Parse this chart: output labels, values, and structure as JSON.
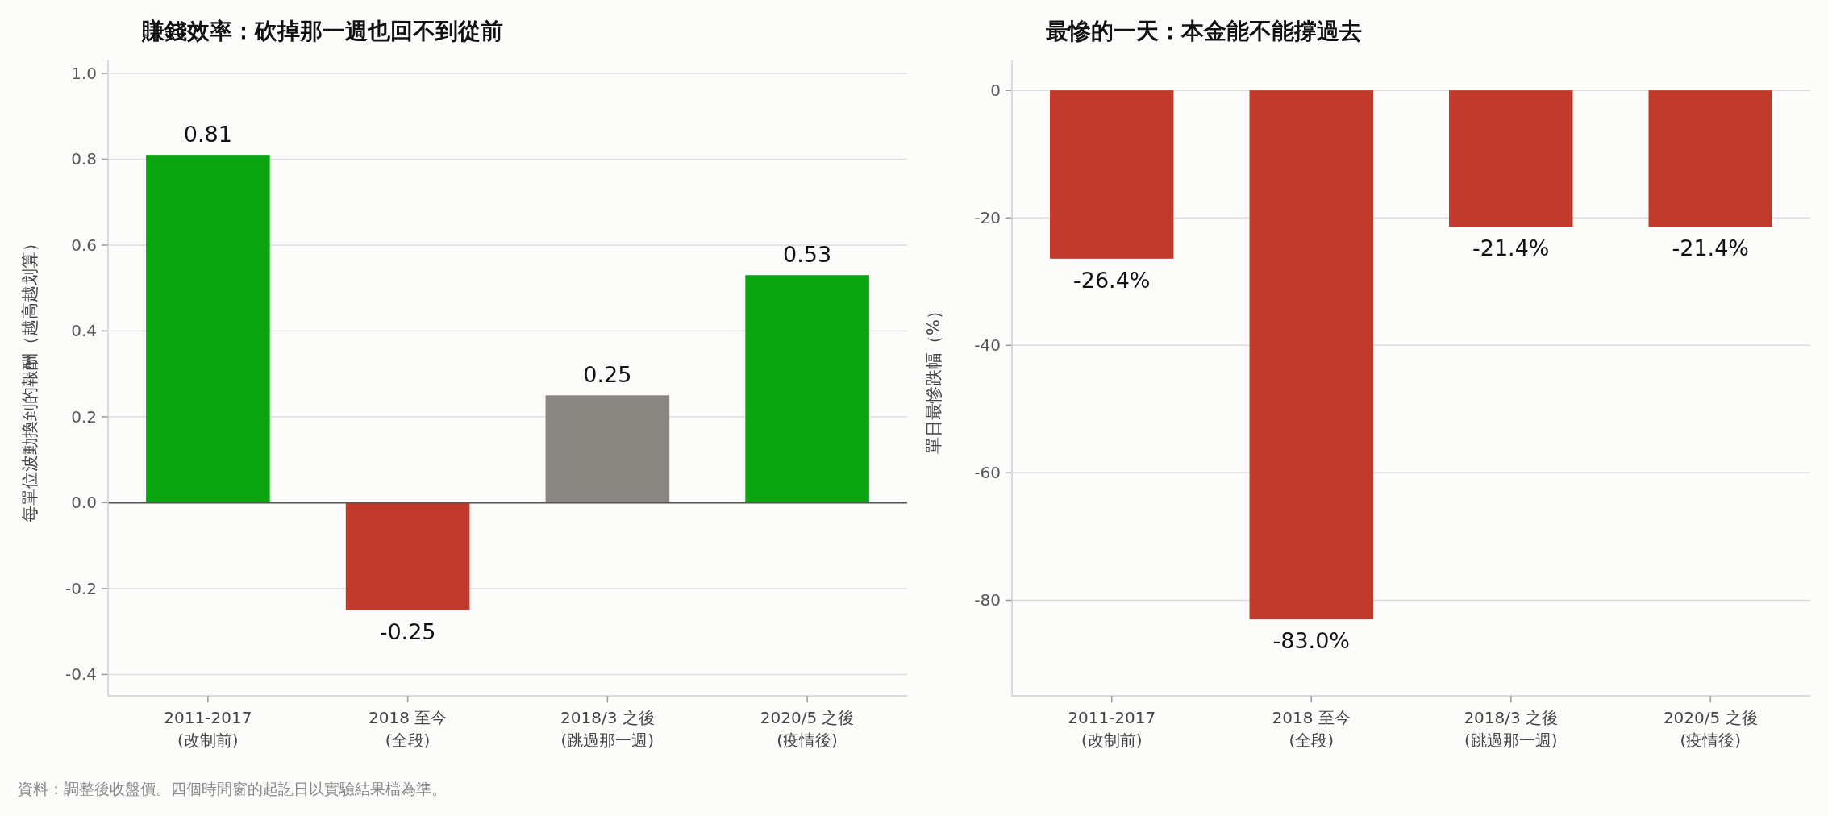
{
  "chart_data": [
    {
      "type": "bar",
      "title": "賺錢效率：砍掉那一週也回不到從前",
      "ylabel": "每單位波動換到的報酬（越高越划算）",
      "categories": [
        "2011-2017\n(改制前)",
        "2018 至今\n(全段)",
        "2018/3 之後\n(跳過那一週)",
        "2020/5 之後\n(疫情後)"
      ],
      "values": [
        0.81,
        -0.25,
        0.25,
        0.53
      ],
      "colors": [
        "#0ca512",
        "#c0392b",
        "#8a8782",
        "#0ca512"
      ],
      "ylim": [
        -0.45,
        1.03
      ],
      "yticks": [
        -0.4,
        -0.2,
        {
          "value": 0,
          "label": "0.0"
        },
        0.2,
        0.4,
        0.6,
        0.8,
        {
          "value": 1,
          "label": "1.0"
        }
      ],
      "grid": "y",
      "data_labels": true,
      "ref_lines": [
        {
          "axis": "y",
          "value": 0,
          "color": "#555555"
        }
      ],
      "annotations": [
        "資料：調整後收盤價。四個時間窗的起訖日以實驗結果檔為準。"
      ]
    },
    {
      "type": "bar",
      "title": "最慘的一天：本金能不能撐過去",
      "ylabel": "單日最慘跌幅（%）",
      "categories": [
        "2011-2017\n(改制前)",
        "2018 至今\n(全段)",
        "2018/3 之後\n(跳過那一週)",
        "2020/5 之後\n(疫情後)"
      ],
      "values": [
        -26.4,
        -83.0,
        -21.4,
        -21.4
      ],
      "color": "#c0392b",
      "ylim": [
        -95,
        4.7
      ],
      "yticks": [
        -80,
        -60,
        -40,
        -20,
        0
      ],
      "grid": "y",
      "value_labels": [
        "-26.4%",
        "-83.0%",
        "-21.4%",
        "-21.4%"
      ]
    }
  ]
}
